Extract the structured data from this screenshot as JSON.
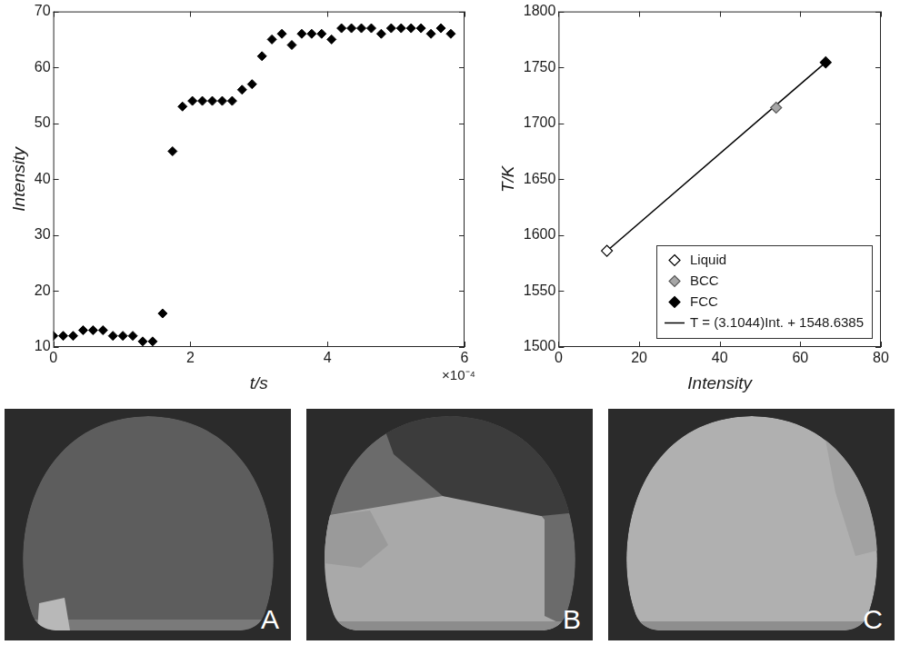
{
  "chart_data": [
    {
      "type": "scatter",
      "x_label": "t/s",
      "y_label": "Intensity",
      "color": "#000000",
      "marker": "diamond",
      "grid": false,
      "annotations": [
        "×10⁻⁴"
      ],
      "xlim": [
        0,
        0.0006
      ],
      "xticks": [
        0,
        {
          "value": 0.0002,
          "label": "2"
        },
        {
          "value": 0.0004,
          "label": "4"
        },
        {
          "value": 0.0006,
          "label": "6"
        }
      ],
      "ylim": [
        10,
        70
      ],
      "yticks": [
        10,
        20,
        30,
        40,
        50,
        60,
        70
      ],
      "x": [
        0,
        1.45e-05,
        2.9e-05,
        4.35e-05,
        5.8e-05,
        7.25e-05,
        8.7e-05,
        0.0001015,
        0.000116,
        0.0001305,
        0.000145,
        0.0001595,
        0.000174,
        0.0001885,
        0.000203,
        0.0002175,
        0.000232,
        0.0002465,
        0.000261,
        0.0002755,
        0.00029,
        0.0003045,
        0.000319,
        0.0003335,
        0.000348,
        0.0003625,
        0.000377,
        0.0003915,
        0.000406,
        0.0004205,
        0.000435,
        0.0004495,
        0.000464,
        0.0004785,
        0.000493,
        0.0005075,
        0.000522,
        0.0005365,
        0.000551,
        0.0005655,
        0.00058
      ],
      "values": [
        12,
        12,
        12,
        13,
        13,
        13,
        12,
        12,
        12,
        11,
        11,
        16,
        45,
        53,
        54,
        54,
        54,
        54,
        54,
        56,
        57,
        62,
        65,
        66,
        64,
        66,
        66,
        66,
        65,
        67,
        67,
        67,
        67,
        66,
        67,
        67,
        67,
        67,
        66,
        67,
        66
      ]
    },
    {
      "type": "scatter",
      "x_label": "Intensity",
      "y_label": "T/K",
      "grid": false,
      "legend": "bottom-right",
      "xlim": [
        0,
        80
      ],
      "xticks": [
        0,
        20,
        40,
        60,
        80
      ],
      "ylim": [
        1500,
        1800
      ],
      "yticks": [
        1500,
        1550,
        1600,
        1650,
        1700,
        1750,
        1800
      ],
      "series": [
        {
          "name": "Liquid",
          "color": "#000000",
          "marker": "open-diamond",
          "x": [
            12
          ],
          "values": [
            1586
          ]
        },
        {
          "name": "BCC",
          "color": "#a6a6a6",
          "marker": "diamond",
          "x": [
            54
          ],
          "values": [
            1714
          ]
        },
        {
          "name": "FCC",
          "color": "#000000",
          "marker": "diamond",
          "x": [
            66.3
          ],
          "values": [
            1754.5
          ]
        },
        {
          "name": "T = (3.1044)Int. + 1548.6385",
          "type": "line",
          "line_style": "solid",
          "color": "#000000",
          "x": [
            12,
            66.3
          ],
          "values": [
            1585.9,
            1754.5
          ]
        }
      ]
    }
  ],
  "images": [
    {
      "label": "A"
    },
    {
      "label": "B"
    },
    {
      "label": "C"
    }
  ]
}
